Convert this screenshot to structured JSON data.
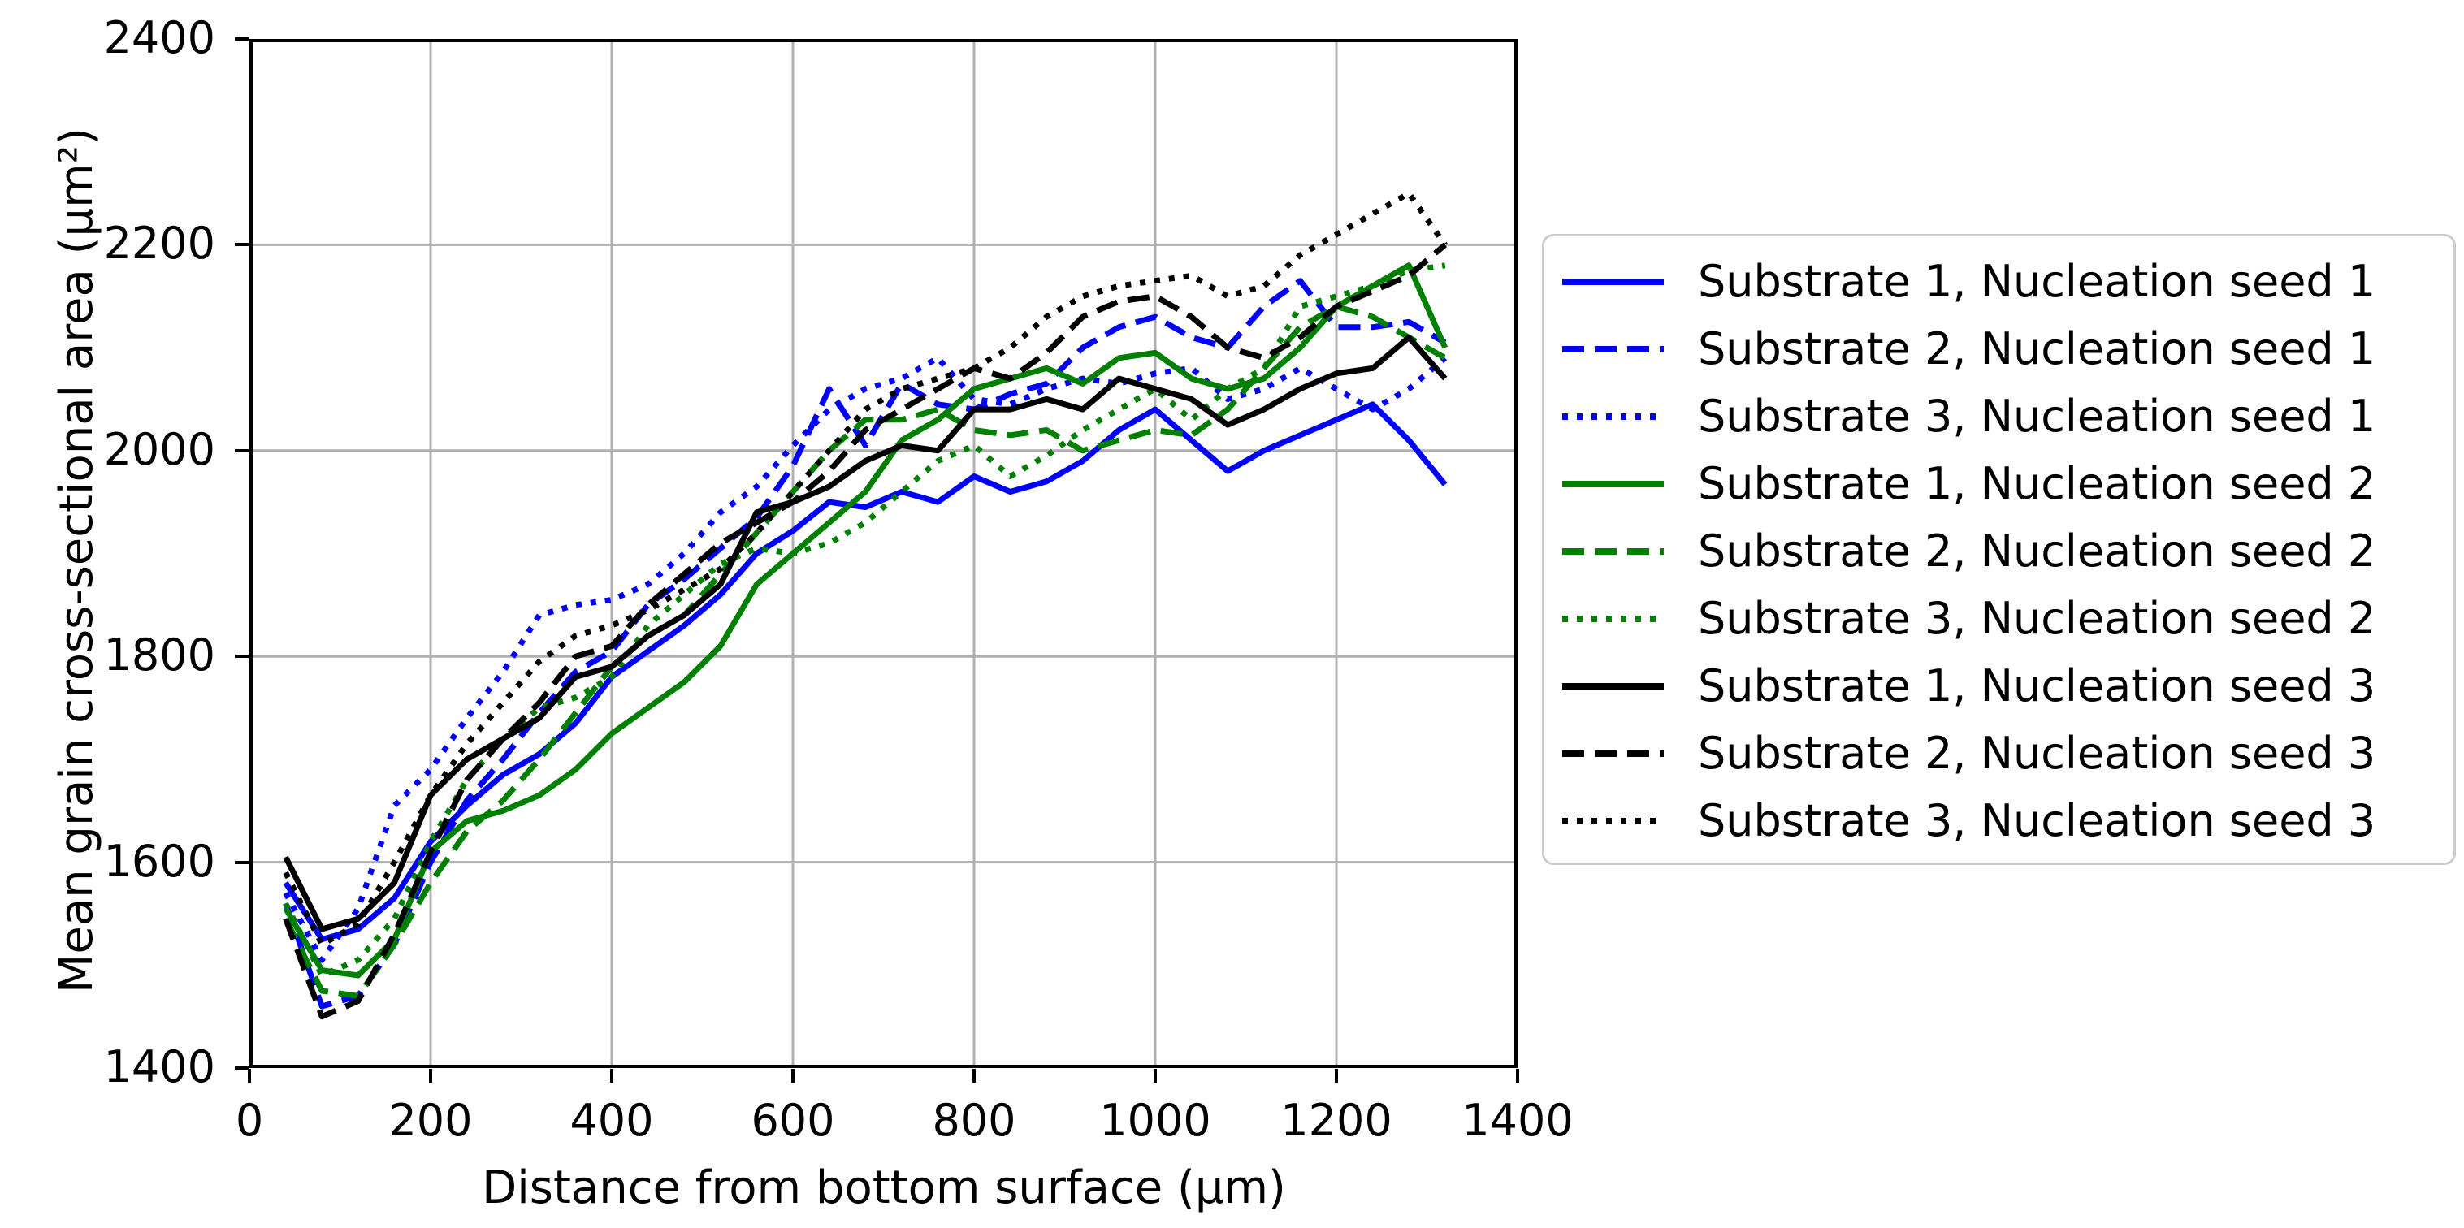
{
  "figure": {
    "background": "#ffffff",
    "grid_color": "#b0b0b0",
    "spine_color": "#000000",
    "legend_border_color": "#cccccc"
  },
  "chart_data": {
    "type": "line",
    "title": "",
    "xlabel": "Distance from bottom surface (μm)",
    "ylabel": "Mean grain cross-sectional area (μm²)",
    "xlim": [
      0,
      1400
    ],
    "ylim": [
      1400,
      2400
    ],
    "xticks": [
      0,
      200,
      400,
      600,
      800,
      1000,
      1200,
      1400
    ],
    "yticks": [
      1400,
      1600,
      1800,
      2000,
      2200,
      2400
    ],
    "grid": true,
    "legend_position": "right",
    "x": [
      40,
      80,
      120,
      160,
      200,
      240,
      280,
      320,
      360,
      400,
      440,
      480,
      520,
      560,
      600,
      640,
      680,
      720,
      760,
      800,
      840,
      880,
      920,
      960,
      1000,
      1040,
      1080,
      1120,
      1160,
      1200,
      1240,
      1280,
      1320
    ],
    "series": [
      {
        "name": "Substrate 1, Nucleation seed 1",
        "color": "#0000ff",
        "style": "solid",
        "values": [
          1580,
          1525,
          1535,
          1565,
          1620,
          1655,
          1685,
          1705,
          1735,
          1780,
          1805,
          1830,
          1860,
          1900,
          1922,
          1950,
          1945,
          1960,
          1950,
          1975,
          1960,
          1970,
          1990,
          2020,
          2040,
          2010,
          1980,
          2000,
          2015,
          2030,
          2045,
          2010,
          1967
        ]
      },
      {
        "name": "Substrate 2, Nucleation seed 1",
        "color": "#0000ff",
        "style": "dashed",
        "values": [
          1560,
          1460,
          1470,
          1520,
          1600,
          1660,
          1700,
          1745,
          1785,
          1805,
          1850,
          1875,
          1905,
          1935,
          1985,
          2060,
          2005,
          2065,
          2045,
          2040,
          2055,
          2065,
          2100,
          2120,
          2130,
          2110,
          2100,
          2140,
          2165,
          2120,
          2120,
          2125,
          2105
        ]
      },
      {
        "name": "Substrate 3, Nucleation seed 1",
        "color": "#0000ff",
        "style": "dotted",
        "values": [
          1570,
          1505,
          1555,
          1655,
          1690,
          1740,
          1785,
          1840,
          1850,
          1855,
          1870,
          1900,
          1940,
          1965,
          2005,
          2040,
          2060,
          2070,
          2090,
          2050,
          2045,
          2060,
          2070,
          2065,
          2075,
          2080,
          2050,
          2060,
          2080,
          2060,
          2040,
          2060,
          2090
        ]
      },
      {
        "name": "Substrate 1, Nucleation seed 2",
        "color": "#008000",
        "style": "solid",
        "values": [
          1555,
          1495,
          1490,
          1525,
          1610,
          1640,
          1650,
          1665,
          1690,
          1725,
          1750,
          1775,
          1810,
          1870,
          1900,
          1930,
          1960,
          2010,
          2030,
          2060,
          2070,
          2080,
          2065,
          2090,
          2095,
          2070,
          2060,
          2070,
          2100,
          2140,
          2160,
          2180,
          2100
        ]
      },
      {
        "name": "Substrate 2, Nucleation seed 2",
        "color": "#008000",
        "style": "dashed",
        "values": [
          1545,
          1475,
          1470,
          1520,
          1580,
          1630,
          1660,
          1700,
          1745,
          1790,
          1820,
          1840,
          1880,
          1920,
          1960,
          2000,
          2030,
          2030,
          2040,
          2020,
          2015,
          2020,
          2000,
          2010,
          2020,
          2015,
          2040,
          2080,
          2120,
          2140,
          2130,
          2110,
          2090
        ]
      },
      {
        "name": "Substrate 3, Nucleation seed 2",
        "color": "#008000",
        "style": "dotted",
        "values": [
          1560,
          1490,
          1505,
          1545,
          1620,
          1680,
          1720,
          1750,
          1760,
          1780,
          1830,
          1860,
          1890,
          1905,
          1900,
          1910,
          1930,
          1960,
          1990,
          2005,
          1975,
          1995,
          2020,
          2040,
          2060,
          2030,
          2060,
          2080,
          2140,
          2150,
          2160,
          2175,
          2180
        ]
      },
      {
        "name": "Substrate 1, Nucleation seed 3",
        "color": "#000000",
        "style": "solid",
        "values": [
          1605,
          1535,
          1545,
          1580,
          1665,
          1700,
          1720,
          1740,
          1780,
          1790,
          1820,
          1840,
          1870,
          1940,
          1950,
          1965,
          1990,
          2005,
          2000,
          2040,
          2040,
          2050,
          2040,
          2070,
          2060,
          2050,
          2025,
          2040,
          2060,
          2075,
          2080,
          2110,
          2070
        ]
      },
      {
        "name": "Substrate 2, Nucleation seed 3",
        "color": "#000000",
        "style": "dashed",
        "values": [
          1545,
          1450,
          1465,
          1530,
          1610,
          1680,
          1720,
          1755,
          1800,
          1810,
          1850,
          1880,
          1910,
          1930,
          1950,
          1980,
          2020,
          2040,
          2060,
          2080,
          2070,
          2095,
          2130,
          2145,
          2150,
          2130,
          2100,
          2090,
          2110,
          2140,
          2155,
          2170,
          2200
        ]
      },
      {
        "name": "Substrate 3, Nucleation seed 3",
        "color": "#000000",
        "style": "dotted",
        "values": [
          1590,
          1520,
          1540,
          1600,
          1665,
          1715,
          1755,
          1795,
          1820,
          1830,
          1845,
          1865,
          1885,
          1920,
          1960,
          2000,
          2040,
          2060,
          2070,
          2080,
          2100,
          2130,
          2150,
          2160,
          2165,
          2170,
          2150,
          2160,
          2190,
          2210,
          2230,
          2250,
          2200
        ]
      }
    ]
  }
}
